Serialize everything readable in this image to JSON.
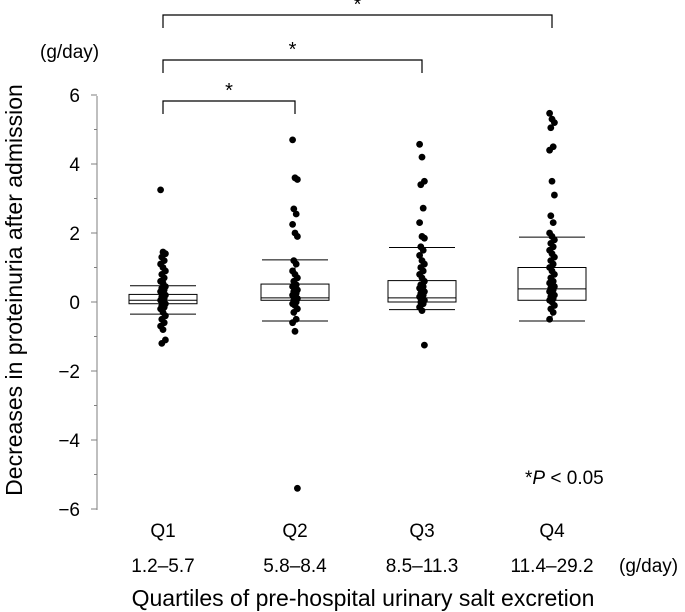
{
  "chart_data": {
    "type": "box",
    "unit_label": "(g/day)",
    "ylabel": "Decreases in proteinuria after admission",
    "xlabel": "Quartiles of pre-hospital urinary salt excretion",
    "x_unit_label": "(g/day)",
    "ylim": [
      -6,
      6
    ],
    "yticks": [
      6,
      4,
      2,
      0,
      -2,
      -4,
      -6
    ],
    "ytick_labels": [
      "6",
      "4",
      "2",
      "0",
      "−2",
      "−4",
      "−6"
    ],
    "groups": [
      {
        "label": "Q1",
        "range": "1.2–5.7",
        "whisker_low": -0.35,
        "q1": -0.05,
        "median": 0.05,
        "q3": 0.22,
        "whisker_high": 0.47,
        "points": [
          3.25,
          1.45,
          1.4,
          1.3,
          1.2,
          1.1,
          1.0,
          0.9,
          0.8,
          0.7,
          0.6,
          0.55,
          0.45,
          0.4,
          0.35,
          0.3,
          0.25,
          0.2,
          0.15,
          0.1,
          0.05,
          0.0,
          -0.05,
          -0.1,
          -0.15,
          -0.2,
          -0.3,
          -0.4,
          -0.5,
          -0.6,
          -0.7,
          -0.8,
          -1.1,
          -1.2
        ]
      },
      {
        "label": "Q2",
        "range": "5.8–8.4",
        "whisker_low": -0.55,
        "q1": 0.05,
        "median": 0.12,
        "q3": 0.52,
        "whisker_high": 1.22,
        "points": [
          4.7,
          3.6,
          3.55,
          2.7,
          2.55,
          2.25,
          2.0,
          1.9,
          1.2,
          1.1,
          0.9,
          0.8,
          0.7,
          0.6,
          0.5,
          0.45,
          0.4,
          0.35,
          0.3,
          0.25,
          0.2,
          0.15,
          0.1,
          0.05,
          0.0,
          -0.05,
          -0.1,
          -0.2,
          -0.3,
          -0.5,
          -0.6,
          -0.85,
          -5.4
        ]
      },
      {
        "label": "Q3",
        "range": "8.5–11.3",
        "whisker_low": -0.22,
        "q1": 0.0,
        "median": 0.12,
        "q3": 0.62,
        "whisker_high": 1.58,
        "points": [
          4.57,
          4.2,
          3.5,
          3.4,
          2.72,
          2.3,
          1.9,
          1.85,
          1.6,
          1.5,
          1.35,
          1.2,
          1.1,
          1.0,
          0.9,
          0.8,
          0.7,
          0.6,
          0.5,
          0.45,
          0.4,
          0.35,
          0.3,
          0.25,
          0.2,
          0.15,
          0.1,
          0.05,
          0.0,
          -0.05,
          -0.15,
          -0.25,
          -1.25
        ]
      },
      {
        "label": "Q4",
        "range": "11.4–29.2",
        "whisker_low": -0.55,
        "q1": 0.05,
        "median": 0.38,
        "q3": 1.0,
        "whisker_high": 1.88,
        "points": [
          5.47,
          5.3,
          5.2,
          5.05,
          4.5,
          4.4,
          3.5,
          3.1,
          2.5,
          2.3,
          2.0,
          1.9,
          1.8,
          1.7,
          1.6,
          1.5,
          1.4,
          1.3,
          1.2,
          1.1,
          1.0,
          0.9,
          0.8,
          0.7,
          0.6,
          0.55,
          0.5,
          0.45,
          0.4,
          0.35,
          0.3,
          0.25,
          0.2,
          0.15,
          0.1,
          0.05,
          0.0,
          -0.1,
          -0.2,
          -0.3,
          -0.5
        ]
      }
    ],
    "significance": [
      {
        "from": 0,
        "to": 1,
        "label": "*"
      },
      {
        "from": 0,
        "to": 2,
        "label": "*"
      },
      {
        "from": 0,
        "to": 3,
        "label": "*"
      }
    ],
    "annotation": {
      "prefix": "*",
      "italic": "P",
      "suffix": " < 0.05"
    }
  }
}
